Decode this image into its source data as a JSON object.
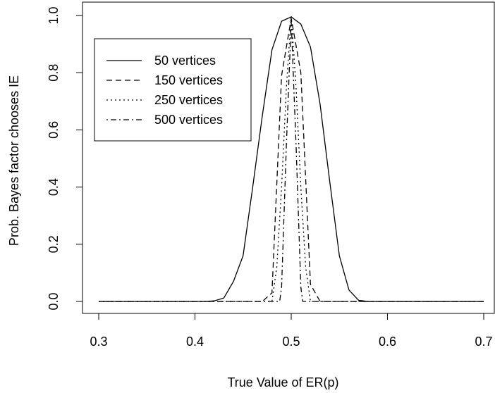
{
  "chart_data": {
    "type": "line",
    "title": "",
    "xlabel": "True Value of ER(p)",
    "ylabel": "Prob. Bayes factor chooses IE",
    "xlim": [
      0.3,
      0.7
    ],
    "ylim": [
      0.0,
      1.0
    ],
    "x_ticks": [
      "0.3",
      "0.4",
      "0.5",
      "0.6",
      "0.7"
    ],
    "y_ticks": [
      "0.0",
      "0.2",
      "0.4",
      "0.6",
      "0.8",
      "1.0"
    ],
    "grid": false,
    "legend_position": "top-left",
    "series": [
      {
        "name": "50 vertices",
        "line_style": "solid",
        "points": [
          [
            0.3,
            0.0
          ],
          [
            0.41,
            0.0
          ],
          [
            0.42,
            0.002
          ],
          [
            0.43,
            0.012
          ],
          [
            0.44,
            0.07
          ],
          [
            0.45,
            0.16
          ],
          [
            0.46,
            0.4
          ],
          [
            0.47,
            0.65
          ],
          [
            0.48,
            0.88
          ],
          [
            0.49,
            0.98
          ],
          [
            0.5,
            0.995
          ],
          [
            0.51,
            0.97
          ],
          [
            0.52,
            0.89
          ],
          [
            0.53,
            0.69
          ],
          [
            0.54,
            0.42
          ],
          [
            0.55,
            0.16
          ],
          [
            0.56,
            0.04
          ],
          [
            0.57,
            0.004
          ],
          [
            0.58,
            0.0
          ],
          [
            0.7,
            0.0
          ]
        ]
      },
      {
        "name": "150 vertices",
        "line_style": "dashed",
        "points": [
          [
            0.3,
            0.0
          ],
          [
            0.47,
            0.0
          ],
          [
            0.48,
            0.03
          ],
          [
            0.49,
            0.79
          ],
          [
            0.5,
            0.99
          ],
          [
            0.51,
            0.8
          ],
          [
            0.52,
            0.06
          ],
          [
            0.53,
            0.0
          ],
          [
            0.7,
            0.0
          ]
        ]
      },
      {
        "name": "250 vertices",
        "line_style": "dotted",
        "points": [
          [
            0.3,
            0.0
          ],
          [
            0.48,
            0.0
          ],
          [
            0.485,
            0.12
          ],
          [
            0.49,
            0.4
          ],
          [
            0.495,
            0.75
          ],
          [
            0.5,
            1.0
          ],
          [
            0.505,
            0.75
          ],
          [
            0.51,
            0.4
          ],
          [
            0.515,
            0.12
          ],
          [
            0.52,
            0.0
          ],
          [
            0.7,
            0.0
          ]
        ]
      },
      {
        "name": "500 vertices",
        "line_style": "dashdot",
        "points": [
          [
            0.3,
            0.0
          ],
          [
            0.488,
            0.0
          ],
          [
            0.49,
            0.05
          ],
          [
            0.495,
            0.55
          ],
          [
            0.5,
            0.98
          ],
          [
            0.505,
            0.55
          ],
          [
            0.51,
            0.05
          ],
          [
            0.512,
            0.0
          ],
          [
            0.7,
            0.0
          ]
        ]
      }
    ]
  },
  "styles": {
    "line_color": "#000000",
    "background": "#ffffff"
  }
}
